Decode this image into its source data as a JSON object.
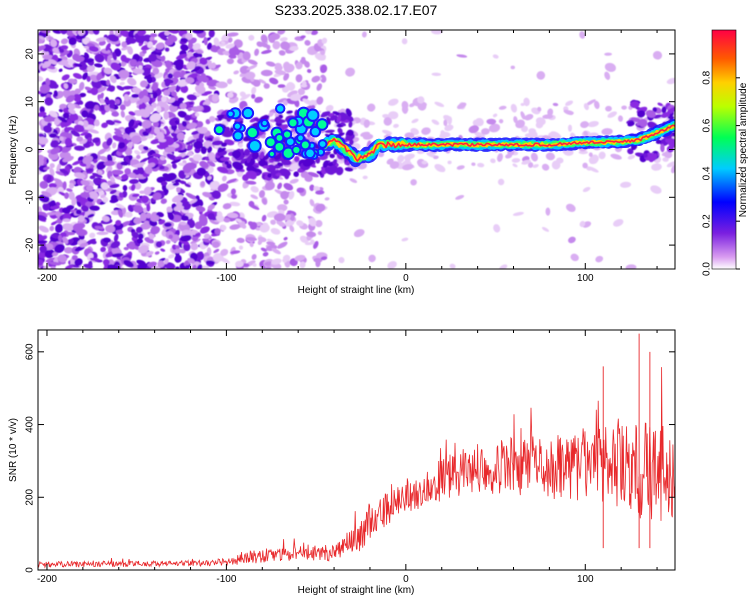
{
  "chart_data": [
    {
      "type": "heatmap",
      "title": "S233.2025.338.02.17.E07",
      "xlabel": "Height of straight line (km)",
      "ylabel": "Frequency (Hz)",
      "xlim": [
        -205,
        150
      ],
      "ylim": [
        -25,
        25
      ],
      "xticks": [
        -200,
        -100,
        0,
        100
      ],
      "yticks": [
        -20,
        -10,
        0,
        10,
        20
      ],
      "ridge_frequency_hz": [
        {
          "x": -105,
          "y": 5
        },
        {
          "x": -80,
          "y": 4
        },
        {
          "x": -60,
          "y": 4
        },
        {
          "x": -45,
          "y": 1
        },
        {
          "x": -40,
          "y": 2
        },
        {
          "x": -30,
          "y": -1
        },
        {
          "x": -28,
          "y": -2
        },
        {
          "x": -20,
          "y": -1
        },
        {
          "x": -15,
          "y": 1
        },
        {
          "x": -10,
          "y": 1
        },
        {
          "x": 0,
          "y": 1
        },
        {
          "x": 20,
          "y": 1
        },
        {
          "x": 40,
          "y": 1
        },
        {
          "x": 60,
          "y": 1
        },
        {
          "x": 80,
          "y": 1
        },
        {
          "x": 100,
          "y": 1.5
        },
        {
          "x": 115,
          "y": 1.5
        },
        {
          "x": 130,
          "y": 2
        },
        {
          "x": 150,
          "y": 5
        }
      ],
      "colorbar": {
        "label": "Normalized spectral amplitude",
        "ticks": [
          "0.0",
          "0.2",
          "0.4",
          "0.6",
          "0.8"
        ],
        "range": [
          0,
          1
        ]
      }
    },
    {
      "type": "line",
      "xlabel": "Height of straight line (km)",
      "ylabel": "SNR (10 * v/v)",
      "xlim": [
        -205,
        150
      ],
      "ylim": [
        0,
        660
      ],
      "xticks": [
        -200,
        -100,
        0,
        100
      ],
      "yticks": [
        0,
        200,
        400,
        600
      ],
      "series_color": "#e8282b",
      "envelope": [
        {
          "x": -205,
          "mean": 15,
          "spread": 8
        },
        {
          "x": -120,
          "mean": 18,
          "spread": 8
        },
        {
          "x": -100,
          "mean": 22,
          "spread": 10
        },
        {
          "x": -80,
          "mean": 40,
          "spread": 20
        },
        {
          "x": -60,
          "mean": 45,
          "spread": 20
        },
        {
          "x": -40,
          "mean": 50,
          "spread": 25
        },
        {
          "x": -30,
          "mean": 70,
          "spread": 40
        },
        {
          "x": -20,
          "mean": 130,
          "spread": 50
        },
        {
          "x": 0,
          "mean": 200,
          "spread": 50
        },
        {
          "x": 20,
          "mean": 250,
          "spread": 60
        },
        {
          "x": 40,
          "mean": 280,
          "spread": 70
        },
        {
          "x": 60,
          "mean": 285,
          "spread": 80
        },
        {
          "x": 80,
          "mean": 280,
          "spread": 90
        },
        {
          "x": 100,
          "mean": 290,
          "spread": 100
        },
        {
          "x": 120,
          "mean": 280,
          "spread": 120
        },
        {
          "x": 135,
          "mean": 270,
          "spread": 150
        },
        {
          "x": 150,
          "mean": 260,
          "spread": 120
        }
      ],
      "peak_points": [
        {
          "x": 110,
          "y": 560
        },
        {
          "x": 130,
          "y": 650
        },
        {
          "x": 136,
          "y": 600
        }
      ]
    }
  ]
}
